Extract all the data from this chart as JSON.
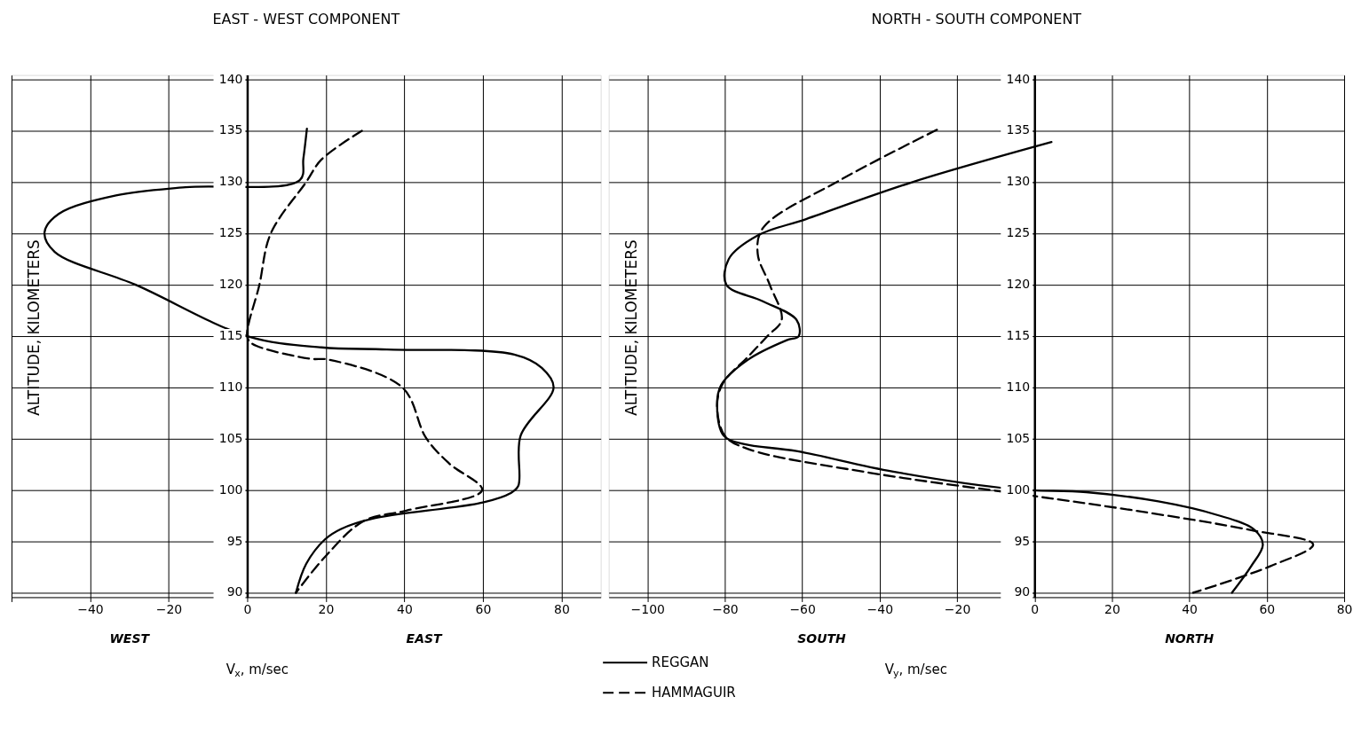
{
  "chart_data": [
    {
      "type": "line",
      "title": "EAST - WEST COMPONENT",
      "xlabel": "V$_{x}$, m/sec",
      "ylabel": "ALTITUDE, KILOMETERS",
      "annotations": [
        "WEST",
        "EAST"
      ],
      "xlim": [
        -60,
        90
      ],
      "xticks": [
        {
          "value": -60,
          "label": null
        },
        -40,
        -20,
        0,
        20,
        40,
        60,
        80
      ],
      "ylim": [
        90,
        140
      ],
      "yticks": [
        90,
        95,
        100,
        105,
        110,
        115,
        120,
        125,
        130,
        135,
        140
      ],
      "grid": true,
      "series": [
        {
          "color": "#000000",
          "line_style": "solid",
          "x": [
            15.2,
            14.3,
            13.4,
            -15.7,
            -33.4,
            -48,
            -51.6,
            -49,
            -28.4,
            0,
            18.9,
            35.6,
            68,
            75,
            78,
            69.6,
            69,
            67,
            60,
            31.7,
            23.8,
            19.8,
            15,
            12.4
          ],
          "values": [
            135.2,
            132.3,
            130.2,
            129.5,
            128.7,
            126.9,
            125.1,
            123.2,
            120,
            115,
            113.9,
            113.7,
            113.2,
            111.9,
            110,
            105.3,
            100.4,
            99.7,
            98.8,
            97.2,
            96.2,
            95.2,
            92.8,
            90
          ]
        },
        {
          "color": "#000000",
          "line_style": "dashed",
          "x": [
            29.2,
            18.9,
            15,
            6,
            3.1,
            0,
            1.1,
            15.9,
            20.8,
            39.5,
            45.5,
            51.4,
            59.8,
            40.5,
            29.7,
            19.8,
            12.4
          ],
          "values": [
            135,
            132.2,
            130,
            125,
            120,
            115,
            114.3,
            112.8,
            112.7,
            110,
            105.1,
            102.6,
            100,
            98,
            97,
            93.5,
            90
          ]
        }
      ]
    },
    {
      "type": "line",
      "title": "NORTH - SOUTH COMPONENT",
      "xlabel": "V$_{y}$, m/sec",
      "ylabel": "ALTITUDE, KILOMETERS",
      "annotations": [
        "SOUTH",
        "NORTH"
      ],
      "xlim": [
        -110,
        80
      ],
      "xticks": [
        -100,
        -80,
        -60,
        -40,
        -20,
        0,
        20,
        40,
        60,
        80
      ],
      "ylim": [
        90,
        140
      ],
      "yticks": [
        90,
        95,
        100,
        105,
        110,
        115,
        120,
        125,
        130,
        135,
        140
      ],
      "grid": true,
      "legend": "bottom",
      "series": [
        {
          "name": "REGGAN",
          "color": "#000000",
          "line_style": "solid",
          "x": [
            4.4,
            -31.5,
            -59,
            -71.5,
            -79,
            -79.6,
            -70.2,
            -61.5,
            -60.9,
            -64,
            -74,
            -81,
            -82,
            -80.3,
            -75.2,
            -61.5,
            -36.5,
            -5.3,
            13.4,
            32,
            47,
            56.6,
            59,
            56,
            51
          ],
          "values": [
            133.9,
            130,
            126.4,
            124.8,
            122.5,
            120,
            118.4,
            116.6,
            115,
            114.6,
            112.7,
            110.2,
            108.2,
            105.3,
            104.5,
            103.8,
            101.8,
            100.1,
            99.8,
            98.9,
            97.6,
            96.2,
            94.7,
            92.6,
            90
          ]
        },
        {
          "name": "HAMMAGUIR",
          "color": "#000000",
          "line_style": "dashed",
          "x": [
            -25.2,
            -50.2,
            -70.2,
            -71.5,
            -68.4,
            -65.3,
            -69,
            -74,
            -80.5,
            -82,
            -80,
            -74,
            -42.7,
            -1.6,
            26,
            56,
            72,
            61,
            41
          ],
          "values": [
            135.1,
            130.2,
            125.5,
            123,
            120,
            116.6,
            115,
            113,
            110.4,
            108.2,
            105.3,
            104,
            101.7,
            99.5,
            98,
            96.1,
            94.7,
            92.6,
            90
          ]
        }
      ]
    }
  ]
}
